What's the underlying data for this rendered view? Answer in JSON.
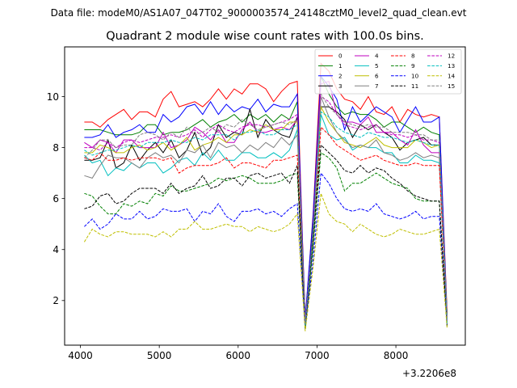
{
  "suptitle": "Data file: modeM0/AS1A07_047T02_9000003574_24148cztM0_level2_quad_clean.evt",
  "chart_data": {
    "type": "line",
    "title": "Quadrant 2 module wise count rates with 100.0s bins.",
    "xlabel": "",
    "ylabel": "",
    "x_offset_label": "+3.2206e8",
    "xlim": [
      3800,
      8880
    ],
    "ylim": [
      0.25,
      11.95
    ],
    "xticks": [
      4000,
      5000,
      6000,
      7000,
      8000
    ],
    "xtick_labels": [
      "4000",
      "5000",
      "6000",
      "7000",
      "8000"
    ],
    "yticks": [
      2,
      4,
      6,
      8,
      10
    ],
    "ytick_labels": [
      "2",
      "4",
      "6",
      "8",
      "10"
    ],
    "grid": false,
    "legend_position": "top-right",
    "legend_columns": 4,
    "x": [
      4050,
      4150,
      4250,
      4350,
      4450,
      4550,
      4650,
      4750,
      4850,
      4950,
      5050,
      5150,
      5250,
      5350,
      5450,
      5550,
      5650,
      5750,
      5850,
      5950,
      6050,
      6150,
      6250,
      6350,
      6450,
      6550,
      6650,
      6750,
      6850,
      6950,
      7050,
      7150,
      7250,
      7350,
      7450,
      7550,
      7650,
      7750,
      7850,
      7950,
      8050,
      8150,
      8250,
      8350,
      8450,
      8550,
      8650
    ],
    "series": [
      {
        "name": "0",
        "color": "#ff0000",
        "dash": "solid",
        "values": [
          9.0,
          9.0,
          8.8,
          9.1,
          9.3,
          9.5,
          9.1,
          9.4,
          9.4,
          9.2,
          9.9,
          10.2,
          9.6,
          9.7,
          9.8,
          9.6,
          9.9,
          10.3,
          9.9,
          10.3,
          10.1,
          10.5,
          10.5,
          10.3,
          9.8,
          10.2,
          10.5,
          10.6,
          1.2,
          5.4,
          11.3,
          11.0,
          10.3,
          9.9,
          9.8,
          9.5,
          10.0,
          9.4,
          9.3,
          9.6,
          9.0,
          9.5,
          9.3,
          9.2,
          9.3,
          9.2,
          1.5
        ]
      },
      {
        "name": "1",
        "color": "#008000",
        "dash": "solid",
        "values": [
          8.7,
          8.7,
          8.7,
          8.6,
          8.5,
          8.5,
          8.5,
          8.6,
          8.9,
          8.9,
          8.5,
          8.6,
          8.6,
          8.7,
          8.9,
          9.1,
          8.8,
          9.0,
          9.1,
          9.3,
          9.0,
          9.3,
          9.1,
          9.3,
          9.0,
          9.3,
          9.1,
          9.8,
          1.2,
          5.0,
          10.8,
          10.1,
          9.6,
          9.3,
          9.4,
          9.3,
          9.3,
          9.1,
          8.8,
          9.0,
          9.0,
          8.8,
          8.6,
          8.8,
          8.6,
          8.5,
          1.4
        ]
      },
      {
        "name": "2",
        "color": "#0000ff",
        "dash": "solid",
        "values": [
          8.4,
          8.4,
          8.5,
          8.9,
          8.4,
          8.6,
          8.7,
          8.9,
          8.6,
          8.6,
          9.3,
          9.0,
          9.2,
          9.6,
          9.7,
          9.3,
          9.8,
          9.3,
          9.7,
          9.4,
          9.6,
          9.5,
          9.9,
          9.4,
          9.7,
          9.6,
          9.6,
          10.1,
          1.3,
          5.3,
          10.8,
          10.4,
          9.9,
          8.7,
          9.6,
          9.0,
          9.3,
          9.6,
          9.4,
          9.2,
          8.6,
          9.1,
          9.6,
          9.0,
          9.0,
          9.2,
          1.3
        ]
      },
      {
        "name": "3",
        "color": "#000000",
        "dash": "solid",
        "values": [
          7.5,
          7.5,
          7.6,
          8.3,
          7.2,
          7.4,
          8.1,
          7.5,
          7.9,
          8.2,
          7.8,
          8.3,
          7.6,
          7.9,
          8.6,
          7.7,
          8.0,
          8.9,
          8.4,
          8.6,
          8.5,
          9.5,
          8.4,
          9.1,
          8.7,
          8.5,
          8.4,
          9.2,
          1.0,
          4.2,
          9.6,
          9.6,
          9.4,
          9.1,
          8.4,
          8.9,
          8.7,
          8.9,
          8.6,
          8.4,
          7.9,
          8.2,
          8.3,
          8.4,
          8.1,
          8.1,
          1.1
        ]
      },
      {
        "name": "4",
        "color": "#bf00bf",
        "dash": "solid",
        "values": [
          8.2,
          8.0,
          8.3,
          8.2,
          7.8,
          8.3,
          8.3,
          8.0,
          8.0,
          8.0,
          8.6,
          8.0,
          8.1,
          8.3,
          8.8,
          8.6,
          8.3,
          8.7,
          8.2,
          8.2,
          8.7,
          9.0,
          8.6,
          8.6,
          8.7,
          8.8,
          8.7,
          9.1,
          1.1,
          4.7,
          10.5,
          10.6,
          9.3,
          9.0,
          9.0,
          8.9,
          9.2,
          8.6,
          8.6,
          8.6,
          8.3,
          8.1,
          8.7,
          8.1,
          7.8,
          7.8,
          1.2
        ]
      },
      {
        "name": "5",
        "color": "#00bfbf",
        "dash": "solid",
        "values": [
          7.7,
          7.4,
          7.5,
          6.9,
          7.2,
          7.1,
          7.4,
          7.2,
          7.4,
          7.4,
          7.0,
          7.2,
          7.5,
          7.6,
          7.3,
          7.8,
          7.5,
          7.9,
          7.5,
          7.5,
          7.8,
          7.8,
          7.6,
          7.6,
          7.8,
          7.6,
          7.9,
          8.7,
          0.9,
          4.3,
          9.3,
          8.5,
          8.3,
          8.4,
          7.9,
          8.1,
          8.0,
          8.0,
          7.8,
          7.8,
          7.4,
          7.4,
          7.7,
          7.5,
          7.5,
          7.4,
          1.1
        ]
      },
      {
        "name": "6",
        "color": "#bfbf00",
        "dash": "solid",
        "values": [
          7.8,
          7.8,
          8.1,
          8.0,
          7.8,
          7.8,
          8.0,
          8.1,
          7.9,
          8.0,
          8.2,
          7.9,
          8.1,
          8.4,
          7.9,
          8.1,
          8.2,
          8.4,
          8.2,
          8.5,
          8.5,
          8.7,
          8.6,
          8.9,
          8.7,
          8.7,
          9.0,
          9.0,
          1.0,
          4.3,
          9.6,
          9.0,
          8.6,
          8.2,
          8.1,
          8.0,
          8.2,
          8.4,
          8.1,
          8.0,
          8.0,
          8.0,
          8.3,
          8.2,
          8.0,
          8.1,
          1.2
        ]
      },
      {
        "name": "7",
        "color": "#808080",
        "dash": "solid",
        "values": [
          6.9,
          6.8,
          7.3,
          7.7,
          7.6,
          7.6,
          7.4,
          7.2,
          7.6,
          7.8,
          7.6,
          7.7,
          7.4,
          7.9,
          7.8,
          8.1,
          7.6,
          8.2,
          8.0,
          8.1,
          7.8,
          8.1,
          7.9,
          8.2,
          8.0,
          8.4,
          8.1,
          8.5,
          1.0,
          4.5,
          10.0,
          9.2,
          8.6,
          8.3,
          8.0,
          8.1,
          8.0,
          8.3,
          7.8,
          7.7,
          7.5,
          7.6,
          7.8,
          7.6,
          7.7,
          7.6,
          1.1
        ]
      },
      {
        "name": "8",
        "color": "#ff0000",
        "dash": "dashed",
        "values": [
          7.6,
          7.5,
          7.8,
          7.5,
          7.5,
          7.6,
          7.5,
          7.6,
          7.6,
          7.6,
          7.5,
          7.6,
          7.0,
          7.2,
          7.3,
          7.3,
          7.3,
          7.4,
          7.6,
          7.2,
          7.4,
          7.4,
          7.3,
          7.2,
          7.5,
          7.5,
          7.6,
          7.7,
          1.0,
          4.3,
          8.8,
          8.5,
          8.1,
          7.9,
          7.7,
          7.5,
          7.6,
          7.7,
          7.5,
          7.4,
          7.3,
          7.3,
          7.4,
          7.3,
          7.3,
          7.3,
          1.1
        ]
      },
      {
        "name": "9",
        "color": "#008000",
        "dash": "dashed",
        "values": [
          6.2,
          6.1,
          5.7,
          5.4,
          5.4,
          5.8,
          5.7,
          5.9,
          5.8,
          6.2,
          6.1,
          6.5,
          6.3,
          6.3,
          6.4,
          6.5,
          6.6,
          6.8,
          6.7,
          6.8,
          6.9,
          6.8,
          6.6,
          6.6,
          6.6,
          6.7,
          6.9,
          7.0,
          0.9,
          4.1,
          7.8,
          7.6,
          7.2,
          6.3,
          6.6,
          6.6,
          6.8,
          7.0,
          6.8,
          6.6,
          6.5,
          6.4,
          6.0,
          5.9,
          5.9,
          5.9,
          1.0
        ]
      },
      {
        "name": "10",
        "color": "#0000ff",
        "dash": "dashed",
        "values": [
          4.9,
          5.2,
          4.8,
          5.0,
          5.4,
          5.2,
          5.2,
          5.5,
          5.2,
          5.3,
          5.6,
          5.5,
          5.5,
          5.6,
          5.1,
          5.5,
          5.4,
          5.8,
          5.3,
          5.1,
          5.5,
          5.5,
          5.6,
          5.4,
          5.5,
          5.3,
          5.6,
          5.8,
          0.9,
          3.6,
          7.0,
          6.6,
          6.0,
          5.6,
          5.5,
          5.6,
          5.5,
          5.8,
          5.4,
          5.3,
          5.2,
          5.3,
          5.5,
          5.2,
          5.3,
          5.3,
          1.0
        ]
      },
      {
        "name": "11",
        "color": "#000000",
        "dash": "dashed",
        "values": [
          5.6,
          5.7,
          6.1,
          6.2,
          5.8,
          5.9,
          6.2,
          6.4,
          6.4,
          6.4,
          6.2,
          6.6,
          6.2,
          6.4,
          6.5,
          6.9,
          6.4,
          6.5,
          6.8,
          6.8,
          6.5,
          6.9,
          7.0,
          6.8,
          6.9,
          7.0,
          6.6,
          7.3,
          0.9,
          4.4,
          8.1,
          7.8,
          7.5,
          7.1,
          7.0,
          7.3,
          7.0,
          7.2,
          7.1,
          6.8,
          6.6,
          6.3,
          6.1,
          6.0,
          5.9,
          5.9,
          1.0
        ]
      },
      {
        "name": "12",
        "color": "#bf00bf",
        "dash": "dashed",
        "values": [
          8.0,
          8.0,
          7.9,
          8.2,
          8.0,
          8.2,
          8.3,
          8.2,
          8.3,
          8.4,
          8.4,
          8.5,
          8.4,
          8.5,
          8.7,
          8.4,
          8.7,
          8.9,
          8.7,
          8.6,
          8.8,
          8.9,
          8.9,
          8.8,
          8.9,
          9.0,
          9.1,
          9.3,
          1.1,
          4.7,
          10.0,
          9.8,
          9.3,
          8.9,
          8.8,
          8.7,
          8.8,
          8.9,
          8.6,
          8.5,
          8.5,
          8.4,
          8.5,
          8.3,
          8.3,
          8.2,
          1.2
        ]
      },
      {
        "name": "13",
        "color": "#00bfbf",
        "dash": "dashed",
        "values": [
          7.9,
          7.7,
          7.8,
          7.9,
          7.9,
          8.0,
          8.1,
          8.0,
          8.2,
          8.2,
          8.2,
          8.3,
          8.2,
          8.2,
          8.4,
          8.3,
          8.5,
          8.5,
          8.5,
          8.3,
          8.6,
          8.6,
          8.7,
          8.5,
          8.5,
          8.7,
          8.7,
          8.9,
          1.0,
          4.6,
          9.4,
          9.2,
          8.8,
          8.6,
          8.5,
          8.4,
          8.6,
          8.5,
          8.4,
          8.4,
          8.3,
          8.2,
          8.3,
          8.2,
          8.1,
          8.1,
          1.1
        ]
      },
      {
        "name": "14",
        "color": "#bfbf00",
        "dash": "dashed",
        "values": [
          4.3,
          4.8,
          4.6,
          4.5,
          4.7,
          4.7,
          4.6,
          4.6,
          4.6,
          4.5,
          4.7,
          4.5,
          4.8,
          4.8,
          5.1,
          4.8,
          4.8,
          4.9,
          5.0,
          4.9,
          4.9,
          4.7,
          4.9,
          4.8,
          4.7,
          4.8,
          5.0,
          5.4,
          0.8,
          3.3,
          6.2,
          5.4,
          5.1,
          5.0,
          4.7,
          5.0,
          4.8,
          4.6,
          4.5,
          4.6,
          4.8,
          4.7,
          4.6,
          4.6,
          4.7,
          4.8,
          0.9
        ]
      },
      {
        "name": "15",
        "color": "#808080",
        "dash": "dashed",
        "values": [
          7.6,
          7.9,
          8.3,
          8.3,
          8.0,
          8.1,
          8.1,
          8.5,
          8.6,
          8.5,
          8.3,
          8.6,
          8.4,
          8.8,
          8.5,
          8.6,
          8.8,
          8.6,
          8.9,
          8.8,
          9.1,
          8.9,
          8.7,
          8.8,
          8.9,
          9.0,
          8.9,
          9.1,
          1.1,
          4.7,
          10.1,
          9.6,
          9.3,
          9.0,
          8.9,
          8.8,
          8.9,
          8.8,
          8.8,
          8.6,
          8.6,
          8.6,
          8.5,
          8.5,
          8.3,
          8.3,
          1.2
        ]
      }
    ]
  }
}
